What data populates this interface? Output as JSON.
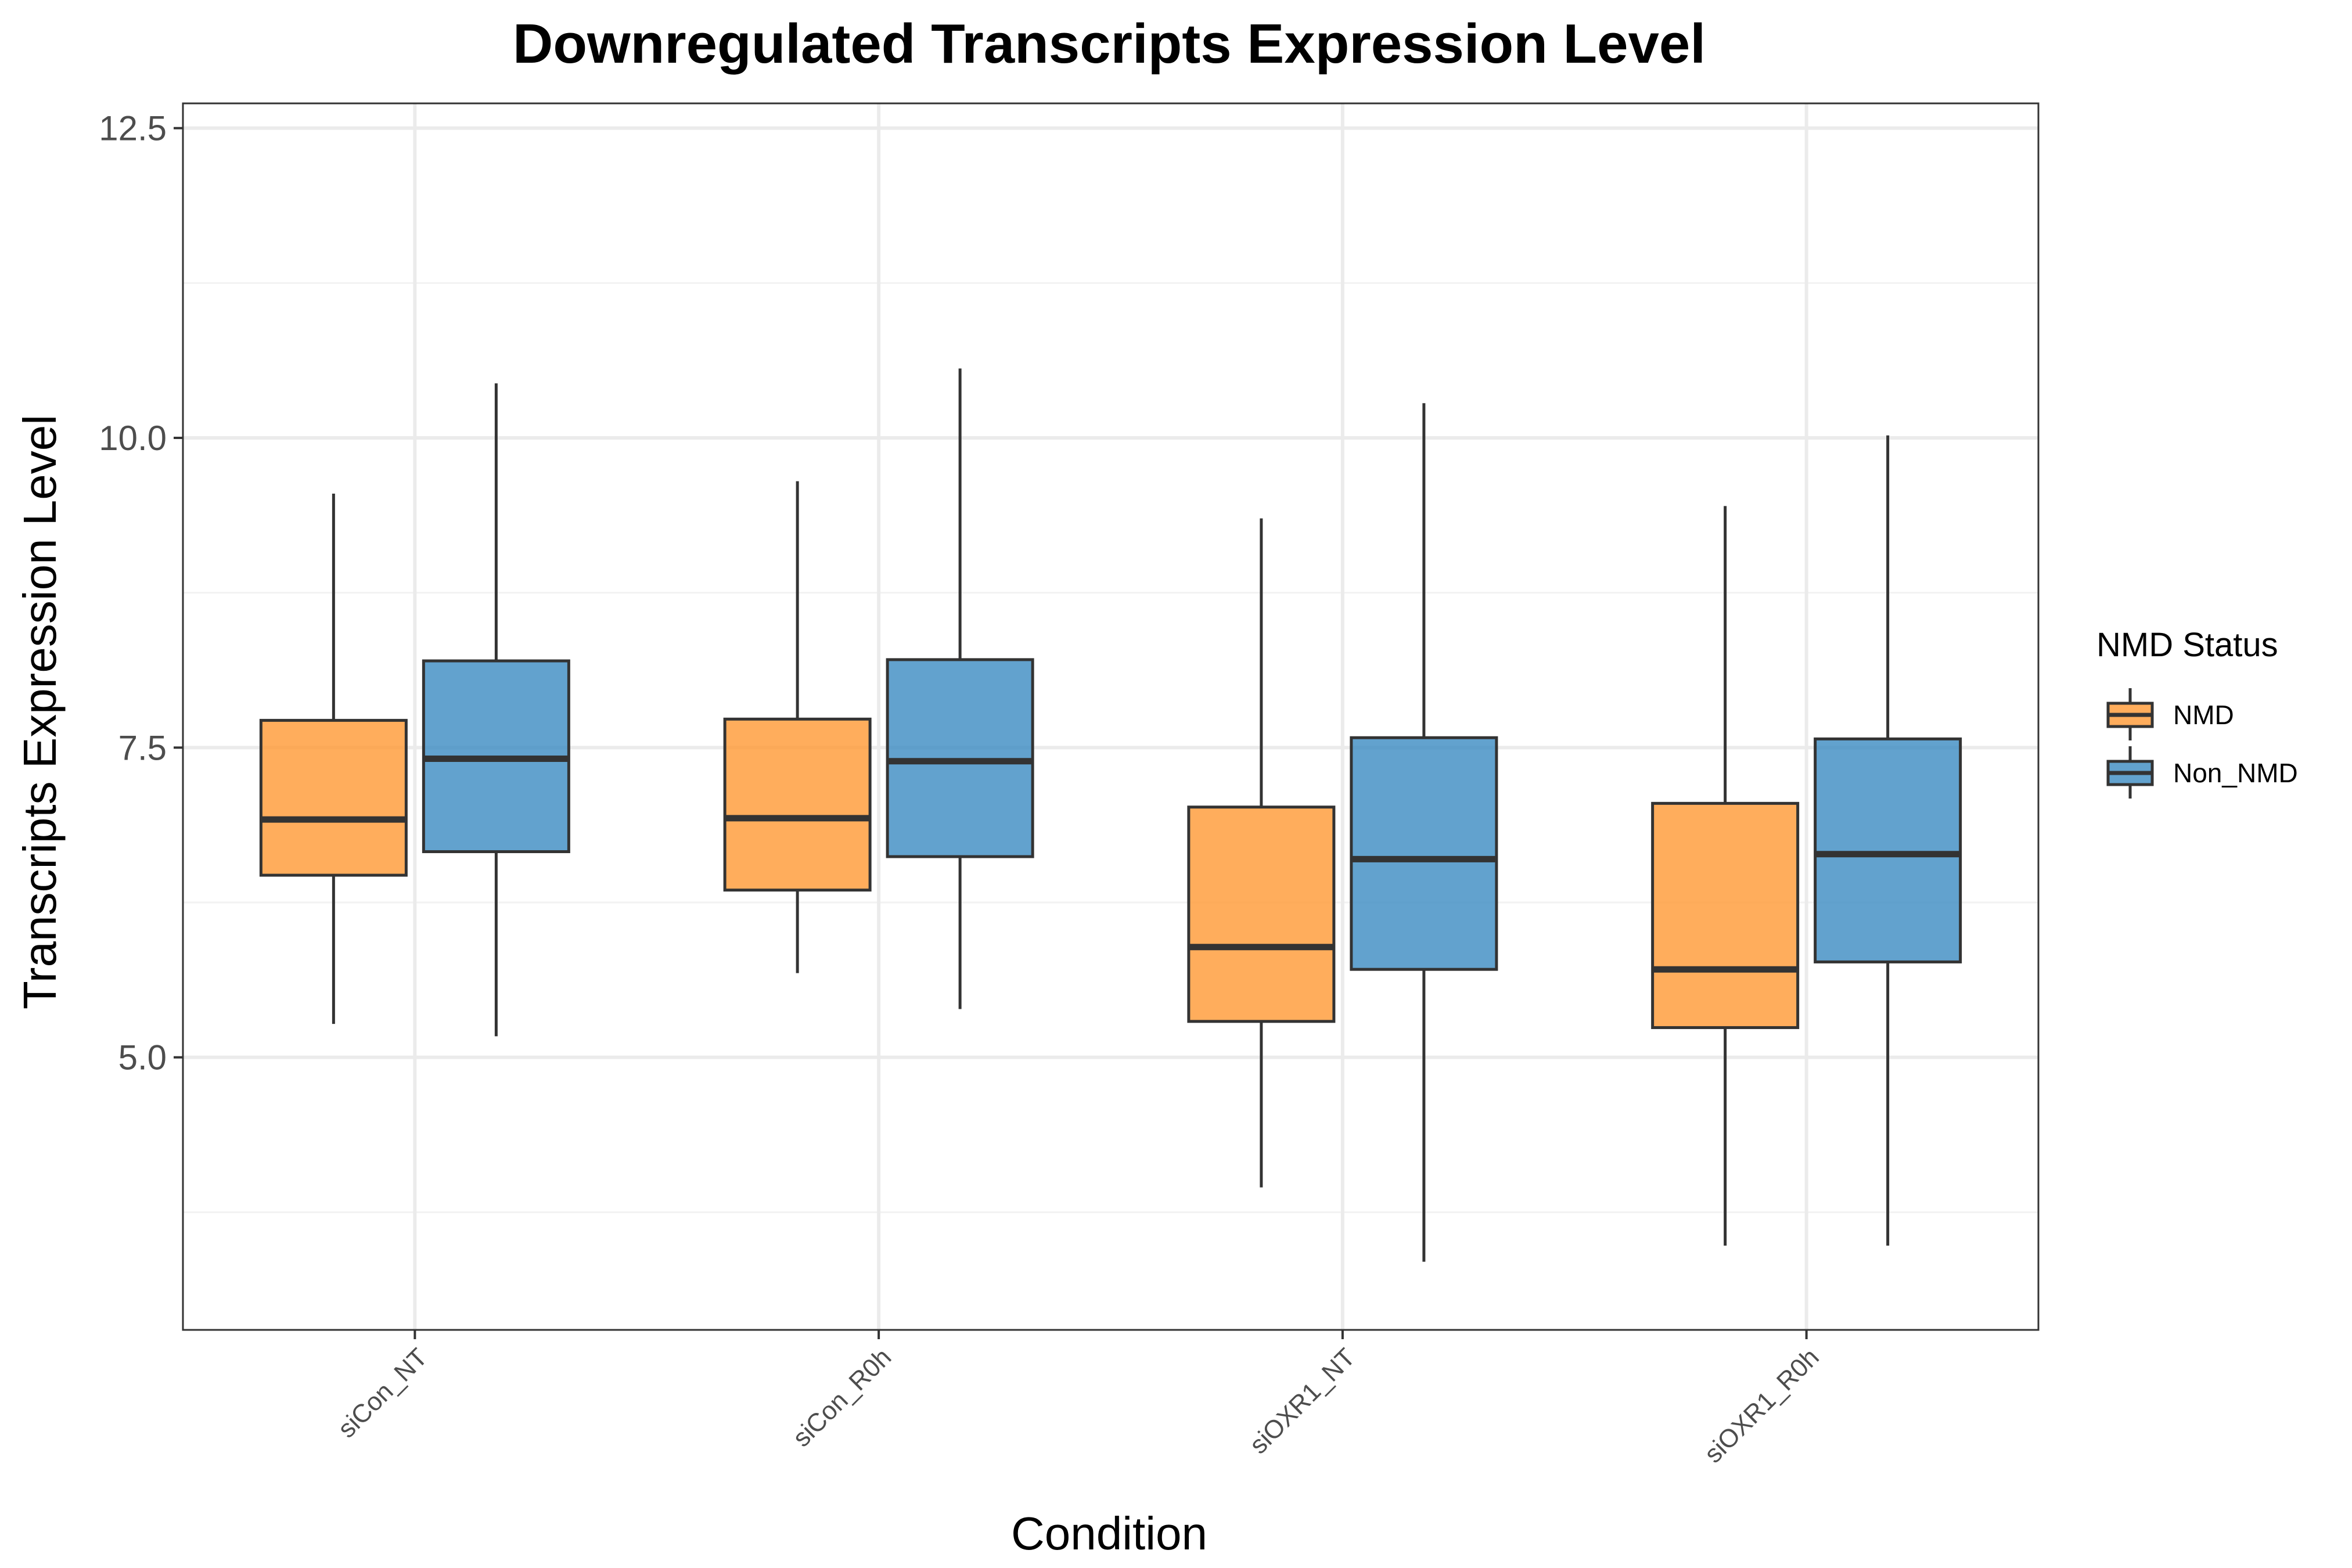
{
  "chart_data": {
    "type": "boxplot",
    "title": "Downregulated Transcripts Expression Level",
    "xlabel": "Condition",
    "ylabel": "Transcripts Expression Level",
    "ylim": [
      2.8,
      12.7
    ],
    "yticks": [
      5.0,
      7.5,
      10.0,
      12.5
    ],
    "ytick_labels": [
      "5.0",
      "7.5",
      "10.0",
      "12.5"
    ],
    "grid": true,
    "categories": [
      "siCon_NT",
      "siCon_R0h",
      "siOXR1_NT",
      "siOXR1_R0h"
    ],
    "legend": {
      "title": "NMD Status",
      "placement": "right"
    },
    "series": [
      {
        "name": "NMD",
        "color": "#ff9933",
        "boxes": [
          {
            "whisker_low": 5.27,
            "q1": 6.47,
            "median": 6.92,
            "q3": 7.72,
            "whisker_high": 9.55
          },
          {
            "whisker_low": 5.68,
            "q1": 6.35,
            "median": 6.93,
            "q3": 7.73,
            "whisker_high": 9.65
          },
          {
            "whisker_low": 3.95,
            "q1": 5.29,
            "median": 5.89,
            "q3": 7.02,
            "whisker_high": 9.35
          },
          {
            "whisker_low": 3.48,
            "q1": 5.24,
            "median": 5.71,
            "q3": 7.05,
            "whisker_high": 9.45
          }
        ]
      },
      {
        "name": "Non_NMD",
        "color": "#3b8bc2",
        "boxes": [
          {
            "whisker_low": 5.17,
            "q1": 6.66,
            "median": 7.41,
            "q3": 8.2,
            "whisker_high": 10.44
          },
          {
            "whisker_low": 5.39,
            "q1": 6.62,
            "median": 7.39,
            "q3": 8.21,
            "whisker_high": 10.56
          },
          {
            "whisker_low": 3.35,
            "q1": 5.71,
            "median": 6.6,
            "q3": 7.58,
            "whisker_high": 10.28
          },
          {
            "whisker_low": 3.48,
            "q1": 5.77,
            "median": 6.64,
            "q3": 7.57,
            "whisker_high": 10.02
          }
        ]
      }
    ]
  }
}
